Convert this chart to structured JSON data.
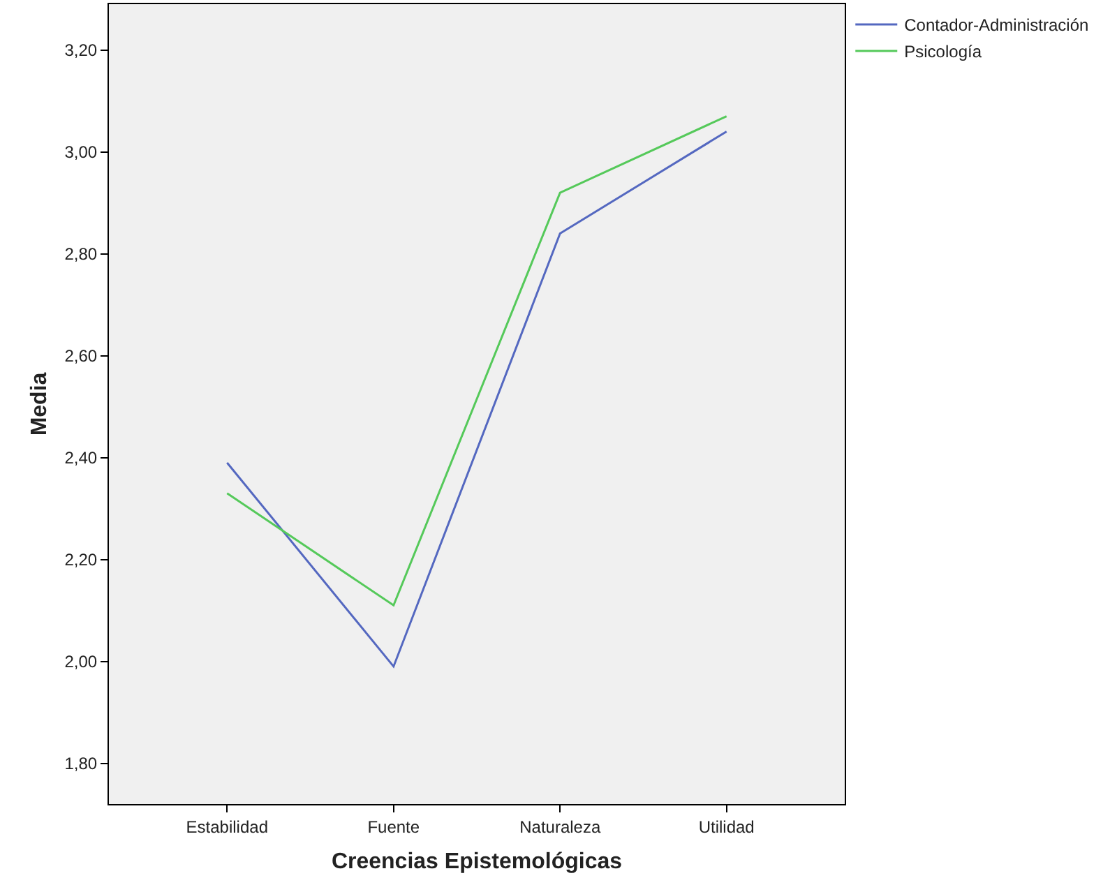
{
  "chart_data": {
    "type": "line",
    "xlabel": "Creencias Epistemológicas",
    "ylabel": "Media",
    "categories": [
      "Estabilidad",
      "Fuente",
      "Naturaleza",
      "Utilidad"
    ],
    "series": [
      {
        "name": "Contador-Administración",
        "color": "#5468c0",
        "values": [
          2.39,
          1.99,
          2.84,
          3.04
        ]
      },
      {
        "name": "Psicología",
        "color": "#55c95a",
        "values": [
          2.33,
          2.11,
          2.92,
          3.07
        ]
      }
    ],
    "ylim": [
      1.72,
      3.29
    ],
    "yticks": [
      {
        "value": 1.8,
        "label": "1,80"
      },
      {
        "value": 2.0,
        "label": "2,00"
      },
      {
        "value": 2.2,
        "label": "2,20"
      },
      {
        "value": 2.4,
        "label": "2,40"
      },
      {
        "value": 2.6,
        "label": "2,60"
      },
      {
        "value": 2.8,
        "label": "2,80"
      },
      {
        "value": 3.0,
        "label": "3,00"
      },
      {
        "value": 3.2,
        "label": "3,20"
      }
    ],
    "grid": false,
    "legend": "top right",
    "marker": "none",
    "line_style": "solid"
  }
}
